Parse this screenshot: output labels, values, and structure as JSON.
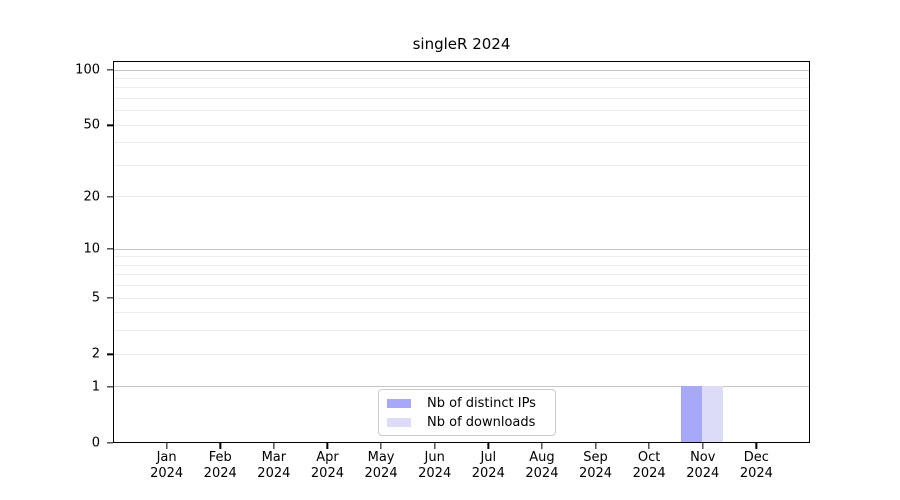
{
  "chart_data": {
    "type": "bar",
    "title": "singleR 2024",
    "categories": [
      {
        "month": "Jan",
        "year": "2024"
      },
      {
        "month": "Feb",
        "year": "2024"
      },
      {
        "month": "Mar",
        "year": "2024"
      },
      {
        "month": "Apr",
        "year": "2024"
      },
      {
        "month": "May",
        "year": "2024"
      },
      {
        "month": "Jun",
        "year": "2024"
      },
      {
        "month": "Jul",
        "year": "2024"
      },
      {
        "month": "Aug",
        "year": "2024"
      },
      {
        "month": "Sep",
        "year": "2024"
      },
      {
        "month": "Oct",
        "year": "2024"
      },
      {
        "month": "Nov",
        "year": "2024"
      },
      {
        "month": "Dec",
        "year": "2024"
      }
    ],
    "series": [
      {
        "name": "Nb of distinct IPs",
        "color": "#a8a8f8",
        "values": [
          0,
          0,
          0,
          0,
          0,
          0,
          0,
          0,
          0,
          0,
          1,
          0
        ]
      },
      {
        "name": "Nb of downloads",
        "color": "#dcdcf8",
        "values": [
          0,
          0,
          0,
          0,
          0,
          0,
          0,
          0,
          0,
          0,
          1,
          0
        ]
      }
    ],
    "xlabel": "",
    "ylabel": "",
    "yscale": "log1p",
    "ylim": [
      0,
      100
    ],
    "ytick_values": [
      0,
      1,
      2,
      5,
      10,
      20,
      50,
      100
    ],
    "ytick_labels": [
      "0",
      "1",
      "2",
      "5",
      "10",
      "20",
      "50",
      "100"
    ],
    "grid_major_values": [
      1,
      10,
      100
    ],
    "grid_minor_values": [
      2,
      3,
      4,
      5,
      6,
      7,
      8,
      9,
      20,
      30,
      40,
      50,
      60,
      70,
      80,
      90
    ],
    "grid": "horizontal",
    "legend_position": "lower center"
  },
  "colors": {
    "grid_major": "#c4c4c4",
    "grid_minor": "#ebebeb",
    "axis": "#000000",
    "legend_border": "#cccccc"
  }
}
